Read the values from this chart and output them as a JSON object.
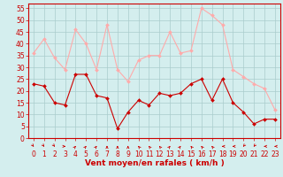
{
  "hours": [
    0,
    1,
    2,
    3,
    4,
    5,
    6,
    7,
    8,
    9,
    10,
    11,
    12,
    13,
    14,
    15,
    16,
    17,
    18,
    19,
    20,
    21,
    22,
    23
  ],
  "wind_avg": [
    23,
    22,
    15,
    14,
    27,
    27,
    18,
    17,
    4,
    11,
    16,
    14,
    19,
    18,
    19,
    23,
    25,
    16,
    25,
    15,
    11,
    6,
    8,
    8
  ],
  "wind_gust": [
    36,
    42,
    34,
    29,
    46,
    40,
    29,
    48,
    29,
    24,
    33,
    35,
    35,
    45,
    36,
    37,
    55,
    52,
    48,
    29,
    26,
    23,
    21,
    12
  ],
  "bg_color": "#d4eeee",
  "grid_color": "#aacccc",
  "line_avg_color": "#cc0000",
  "line_gust_color": "#ffaaaa",
  "xlabel": "Vent moyen/en rafales ( km/h )",
  "xlabel_color": "#cc0000",
  "xlabel_fontsize": 6.5,
  "yticks": [
    0,
    5,
    10,
    15,
    20,
    25,
    30,
    35,
    40,
    45,
    50,
    55
  ],
  "ylim": [
    0,
    57
  ],
  "xlim": [
    -0.5,
    23.5
  ],
  "tick_fontsize": 5.5,
  "tick_color": "#cc0000",
  "axis_color": "#cc0000",
  "linewidth": 0.8,
  "markersize": 2.0
}
